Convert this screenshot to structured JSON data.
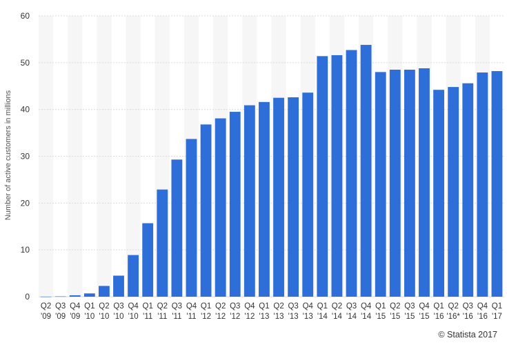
{
  "chart_data": {
    "type": "bar",
    "categories": [
      [
        "Q2",
        "'09"
      ],
      [
        "Q3",
        "'09"
      ],
      [
        "Q4",
        "'09"
      ],
      [
        "Q1",
        "'10"
      ],
      [
        "Q2",
        "'10"
      ],
      [
        "Q3",
        "'10"
      ],
      [
        "Q4",
        "'10"
      ],
      [
        "Q1",
        "'11"
      ],
      [
        "Q2",
        "'11"
      ],
      [
        "Q3",
        "'11"
      ],
      [
        "Q4",
        "'11"
      ],
      [
        "Q1",
        "'12"
      ],
      [
        "Q2",
        "'12"
      ],
      [
        "Q3",
        "'12"
      ],
      [
        "Q4",
        "'12"
      ],
      [
        "Q1",
        "'13"
      ],
      [
        "Q2",
        "'13"
      ],
      [
        "Q3",
        "'13"
      ],
      [
        "Q4",
        "'13"
      ],
      [
        "Q1",
        "'14"
      ],
      [
        "Q2",
        "'14"
      ],
      [
        "Q3",
        "'14"
      ],
      [
        "Q4",
        "'14"
      ],
      [
        "Q1",
        "'15"
      ],
      [
        "Q2",
        "'15"
      ],
      [
        "Q3",
        "'15"
      ],
      [
        "Q4",
        "'15"
      ],
      [
        "Q1",
        "'16"
      ],
      [
        "Q2",
        "'16*"
      ],
      [
        "Q3",
        "'16"
      ],
      [
        "Q4",
        "'16"
      ],
      [
        "Q1",
        "'17"
      ]
    ],
    "values": [
      0.01,
      0.07,
      0.3,
      0.7,
      2.3,
      4.5,
      8.9,
      15.7,
      22.9,
      29.3,
      33.7,
      36.8,
      38.1,
      39.5,
      40.9,
      41.6,
      42.5,
      42.6,
      43.6,
      51.4,
      51.6,
      52.7,
      53.8,
      48.0,
      48.5,
      48.5,
      48.8,
      44.2,
      44.8,
      45.6,
      47.9,
      48.2
    ],
    "ylabel": "Number of active customers in millions",
    "ylim": [
      0,
      60
    ],
    "yticks": [
      0,
      10,
      20,
      30,
      40,
      50,
      60
    ],
    "grid": true,
    "bar_color": "#2e6ed8",
    "alt_band_color": "#f6f6f6",
    "grid_color": "#d9d9d9"
  },
  "credit": "© Statista 2017"
}
